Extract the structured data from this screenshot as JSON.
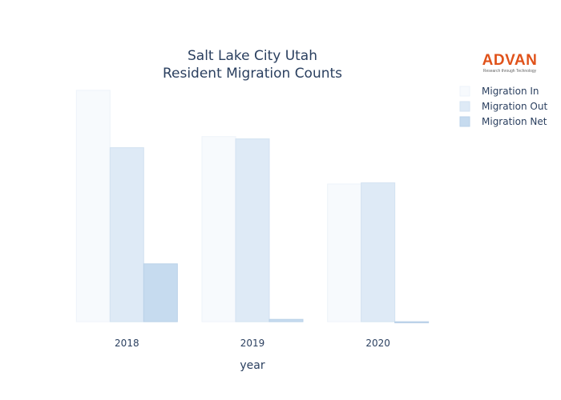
{
  "colors": {
    "migration_in": "#f7fafd",
    "migration_out": "#deeaf6",
    "migration_net": "#c6dbef",
    "text": "#2a3f5f",
    "logo": "#e0521a"
  },
  "logo": {
    "word": "ADVAN",
    "tagline": "Research through Technology"
  },
  "chart_data": {
    "type": "bar",
    "title": [
      "Salt Lake City Utah",
      "Resident Migration Counts"
    ],
    "xlabel": "year",
    "ylabel": "",
    "categories": [
      "2018",
      "2019",
      "2020"
    ],
    "series": [
      {
        "name": "Migration In",
        "values": [
          1000,
          800,
          595
        ]
      },
      {
        "name": "Migration Out",
        "values": [
          752,
          790,
          600
        ]
      },
      {
        "name": "Migration Net",
        "values": [
          250,
          10,
          -5
        ]
      }
    ],
    "ylim": [
      -10,
      1010
    ],
    "grid": false,
    "legend": "top-right",
    "y_ticks_shown": false
  }
}
